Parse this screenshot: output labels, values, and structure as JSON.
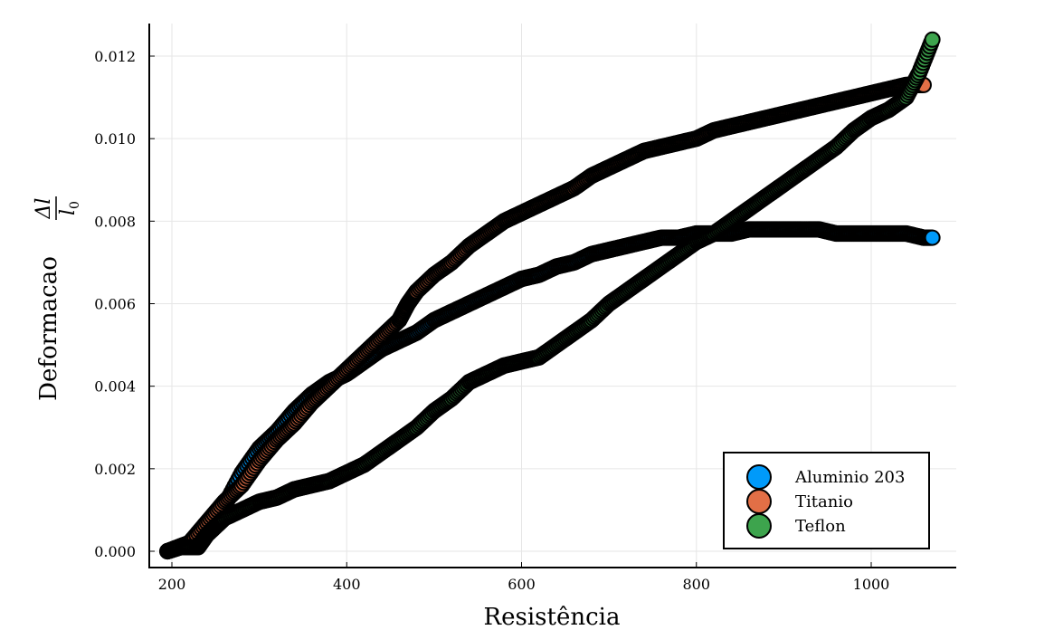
{
  "chart_data": {
    "type": "scatter",
    "xlabel": "Resistência",
    "ylabel": {
      "text": "Deformacao",
      "fraction_numerator": "Δl",
      "fraction_denominator_base": "l",
      "fraction_denominator_sub": "0"
    },
    "xlim": [
      175,
      1100
    ],
    "ylim": [
      -0.0004,
      0.0128
    ],
    "xticks": [
      200,
      400,
      600,
      800,
      1000
    ],
    "xtick_labels": [
      "200",
      "400",
      "600",
      "800",
      "1000"
    ],
    "yticks": [
      0.0,
      0.002,
      0.004,
      0.006,
      0.008,
      0.01,
      0.012
    ],
    "ytick_labels": [
      "0.000",
      "0.002",
      "0.004",
      "0.006",
      "0.008",
      "0.010",
      "0.012"
    ],
    "grid": true,
    "legend_position": "bottom-right",
    "series": [
      {
        "name": "Aluminio 203",
        "color": "#009AFA",
        "points": [
          [
            195,
            0.0
          ],
          [
            220,
            0.0002
          ],
          [
            240,
            0.0006
          ],
          [
            260,
            0.0011
          ],
          [
            280,
            0.0019
          ],
          [
            300,
            0.0025
          ],
          [
            320,
            0.0029
          ],
          [
            340,
            0.0034
          ],
          [
            360,
            0.0038
          ],
          [
            380,
            0.0041
          ],
          [
            400,
            0.0043
          ],
          [
            420,
            0.0046
          ],
          [
            440,
            0.0049
          ],
          [
            460,
            0.0051
          ],
          [
            480,
            0.0053
          ],
          [
            500,
            0.0056
          ],
          [
            520,
            0.0058
          ],
          [
            540,
            0.006
          ],
          [
            560,
            0.0062
          ],
          [
            580,
            0.0064
          ],
          [
            600,
            0.0066
          ],
          [
            620,
            0.0067
          ],
          [
            640,
            0.0069
          ],
          [
            660,
            0.007
          ],
          [
            680,
            0.0072
          ],
          [
            700,
            0.0073
          ],
          [
            720,
            0.0074
          ],
          [
            740,
            0.0075
          ],
          [
            760,
            0.0076
          ],
          [
            780,
            0.0076
          ],
          [
            800,
            0.0077
          ],
          [
            820,
            0.0077
          ],
          [
            840,
            0.0077
          ],
          [
            860,
            0.0078
          ],
          [
            880,
            0.0078
          ],
          [
            900,
            0.0078
          ],
          [
            920,
            0.0078
          ],
          [
            940,
            0.0078
          ],
          [
            960,
            0.0077
          ],
          [
            980,
            0.0077
          ],
          [
            1000,
            0.0077
          ],
          [
            1020,
            0.0077
          ],
          [
            1040,
            0.0077
          ],
          [
            1060,
            0.0076
          ],
          [
            1070,
            0.0076
          ]
        ]
      },
      {
        "name": "Titanio",
        "color": "#E26F46",
        "points": [
          [
            195,
            0.0
          ],
          [
            220,
            0.0002
          ],
          [
            240,
            0.0007
          ],
          [
            260,
            0.0012
          ],
          [
            280,
            0.0016
          ],
          [
            300,
            0.0022
          ],
          [
            320,
            0.0027
          ],
          [
            340,
            0.0031
          ],
          [
            360,
            0.0036
          ],
          [
            380,
            0.004
          ],
          [
            400,
            0.0044
          ],
          [
            420,
            0.0048
          ],
          [
            440,
            0.0052
          ],
          [
            460,
            0.0056
          ],
          [
            470,
            0.006
          ],
          [
            480,
            0.0063
          ],
          [
            500,
            0.0067
          ],
          [
            520,
            0.007
          ],
          [
            540,
            0.0074
          ],
          [
            560,
            0.0077
          ],
          [
            580,
            0.008
          ],
          [
            600,
            0.0082
          ],
          [
            620,
            0.0084
          ],
          [
            640,
            0.0086
          ],
          [
            660,
            0.0088
          ],
          [
            680,
            0.0091
          ],
          [
            700,
            0.0093
          ],
          [
            720,
            0.0095
          ],
          [
            740,
            0.0097
          ],
          [
            760,
            0.0098
          ],
          [
            780,
            0.0099
          ],
          [
            800,
            0.01
          ],
          [
            820,
            0.0102
          ],
          [
            840,
            0.0103
          ],
          [
            860,
            0.0104
          ],
          [
            880,
            0.0105
          ],
          [
            900,
            0.0106
          ],
          [
            920,
            0.0107
          ],
          [
            940,
            0.0108
          ],
          [
            960,
            0.0109
          ],
          [
            980,
            0.011
          ],
          [
            1000,
            0.0111
          ],
          [
            1020,
            0.0112
          ],
          [
            1040,
            0.0113
          ],
          [
            1060,
            0.0113
          ]
        ]
      },
      {
        "name": "Teflon",
        "color": "#3DA44D",
        "points": [
          [
            195,
            0.0
          ],
          [
            210,
            0.0001
          ],
          [
            230,
            0.0001
          ],
          [
            240,
            0.0004
          ],
          [
            250,
            0.0006
          ],
          [
            260,
            0.0008
          ],
          [
            280,
            0.001
          ],
          [
            300,
            0.0012
          ],
          [
            320,
            0.0013
          ],
          [
            340,
            0.0015
          ],
          [
            360,
            0.0016
          ],
          [
            380,
            0.0017
          ],
          [
            400,
            0.0019
          ],
          [
            420,
            0.0021
          ],
          [
            440,
            0.0024
          ],
          [
            460,
            0.0027
          ],
          [
            480,
            0.003
          ],
          [
            500,
            0.0034
          ],
          [
            520,
            0.0037
          ],
          [
            540,
            0.0041
          ],
          [
            560,
            0.0043
          ],
          [
            580,
            0.0045
          ],
          [
            600,
            0.0046
          ],
          [
            620,
            0.0047
          ],
          [
            640,
            0.005
          ],
          [
            660,
            0.0053
          ],
          [
            680,
            0.0056
          ],
          [
            700,
            0.006
          ],
          [
            720,
            0.0063
          ],
          [
            740,
            0.0066
          ],
          [
            760,
            0.0069
          ],
          [
            780,
            0.0072
          ],
          [
            800,
            0.0075
          ],
          [
            820,
            0.0077
          ],
          [
            840,
            0.008
          ],
          [
            860,
            0.0083
          ],
          [
            880,
            0.0086
          ],
          [
            900,
            0.0089
          ],
          [
            920,
            0.0092
          ],
          [
            940,
            0.0095
          ],
          [
            960,
            0.0098
          ],
          [
            980,
            0.0102
          ],
          [
            1000,
            0.0105
          ],
          [
            1020,
            0.0107
          ],
          [
            1040,
            0.011
          ],
          [
            1055,
            0.0116
          ],
          [
            1070,
            0.0124
          ]
        ]
      }
    ]
  }
}
